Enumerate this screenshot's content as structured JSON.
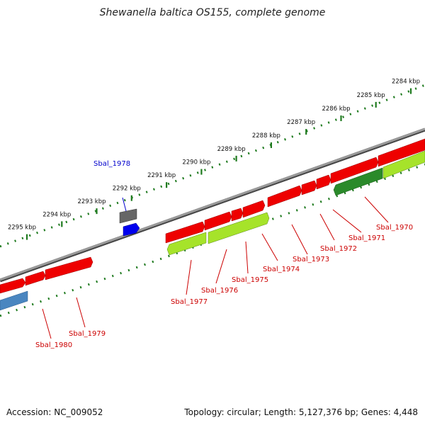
{
  "title": "Shewanella baltica OS155, complete genome",
  "footer": {
    "accession": "Accession: NC_009052",
    "summary": "Topology: circular; Length: 5,127,376 bp; Genes: 4,448"
  },
  "colors": {
    "backbone": "#7a7a7a",
    "tick": "#1e7a1e",
    "forward_gene": "#ee0000",
    "reverse_gene": "#a6e32a",
    "dark_green_gene": "#2a8a2a",
    "steelblue_gene": "#4a86c0",
    "gray_gene": "#666666",
    "blue_gene": "#0000ee",
    "label_red": "#cc0000",
    "label_blue": "#0000cc"
  },
  "upper_ticks": [
    "2284 kbp",
    "2285 kbp",
    "2286 kbp",
    "2287 kbp",
    "2288 kbp",
    "2289 kbp",
    "2290 kbp",
    "2291 kbp",
    "2292 kbp",
    "2293 kbp",
    "2294 kbp",
    "2295 kbp"
  ],
  "gene_labels": [
    "Sbal_1970",
    "Sbal_1971",
    "Sbal_1972",
    "Sbal_1973",
    "Sbal_1974",
    "Sbal_1975",
    "Sbal_1976",
    "Sbal_1977",
    "Sbal_1978",
    "Sbal_1979",
    "Sbal_1980"
  ]
}
